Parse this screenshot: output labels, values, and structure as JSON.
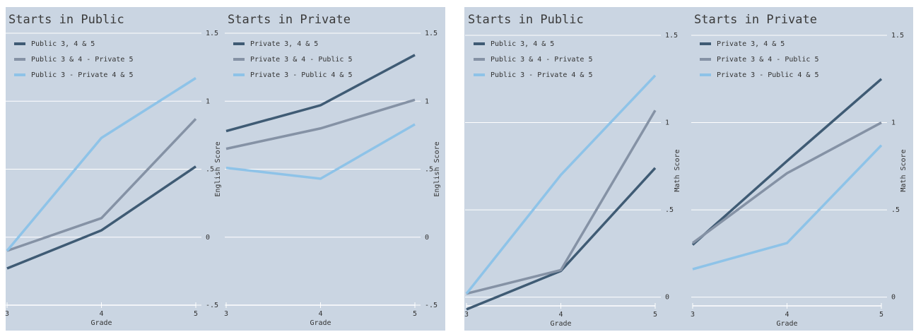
{
  "chart_data": [
    {
      "type": "line",
      "title": "Starts in Public",
      "xlabel": "Grade",
      "ylabel": "English Score",
      "x": [
        3,
        4,
        5
      ],
      "xlim": [
        3,
        5
      ],
      "xticks": [
        3,
        4,
        5
      ],
      "ylim": [
        -0.5,
        1.5
      ],
      "yticks": [
        {
          "value": -0.5,
          "label": "-.5"
        },
        0,
        {
          "value": 0.5,
          "label": ".5"
        },
        1,
        1.5
      ],
      "grid": true,
      "series": [
        {
          "name": "Public 3, 4 & 5",
          "color": "#3f5b74",
          "values": [
            -0.23,
            0.05,
            0.52
          ]
        },
        {
          "name": "Public 3 & 4 - Private 5",
          "color": "#8592a5",
          "values": [
            -0.1,
            0.14,
            0.87
          ]
        },
        {
          "name": "Public 3 - Private 4 & 5",
          "color": "#8ec3e8",
          "values": [
            -0.1,
            0.73,
            1.17
          ]
        }
      ]
    },
    {
      "type": "line",
      "title": "Starts in Private",
      "xlabel": "Grade",
      "ylabel": "English Score",
      "x": [
        3,
        4,
        5
      ],
      "xlim": [
        3,
        5
      ],
      "xticks": [
        3,
        4,
        5
      ],
      "ylim": [
        -0.5,
        1.5
      ],
      "yticks": [
        {
          "value": -0.5,
          "label": "-.5"
        },
        0,
        {
          "value": 0.5,
          "label": ".5"
        },
        1,
        1.5
      ],
      "grid": true,
      "series": [
        {
          "name": "Private 3, 4 & 5",
          "color": "#3f5b74",
          "values": [
            0.78,
            0.97,
            1.34
          ]
        },
        {
          "name": "Private 3 & 4 - Public 5",
          "color": "#8592a5",
          "values": [
            0.65,
            0.8,
            1.01
          ]
        },
        {
          "name": "Private 3 - Public 4 & 5",
          "color": "#8ec3e8",
          "values": [
            0.51,
            0.43,
            0.83
          ]
        }
      ]
    },
    {
      "type": "line",
      "title": "Starts in Public",
      "xlabel": "Grade",
      "ylabel": "Math Score",
      "x": [
        3,
        4,
        5
      ],
      "xlim": [
        3,
        5
      ],
      "xticks": [
        3,
        4,
        5
      ],
      "ylim": [
        -0.05,
        1.5
      ],
      "yticks": [
        0,
        {
          "value": 0.5,
          "label": ".5"
        },
        1,
        1.5
      ],
      "grid": true,
      "series": [
        {
          "name": "Public 3, 4 & 5",
          "color": "#3f5b74",
          "values": [
            -0.07,
            0.15,
            0.74
          ]
        },
        {
          "name": "Public 3 & 4 - Private 5",
          "color": "#8592a5",
          "values": [
            0.02,
            0.155,
            1.07
          ]
        },
        {
          "name": "Public 3 - Private 4 & 5",
          "color": "#8ec3e8",
          "values": [
            0.02,
            0.7,
            1.27
          ]
        }
      ]
    },
    {
      "type": "line",
      "title": "Starts in Private",
      "xlabel": "Grade",
      "ylabel": "Math Score",
      "x": [
        3,
        4,
        5
      ],
      "xlim": [
        3,
        5
      ],
      "xticks": [
        3,
        4,
        5
      ],
      "ylim": [
        -0.05,
        1.5
      ],
      "yticks": [
        0,
        {
          "value": 0.5,
          "label": ".5"
        },
        1,
        1.5
      ],
      "grid": true,
      "series": [
        {
          "name": "Private 3, 4 & 5",
          "color": "#3f5b74",
          "values": [
            0.3,
            0.78,
            1.25
          ]
        },
        {
          "name": "Private 3 & 4 - Public 5",
          "color": "#8592a5",
          "values": [
            0.31,
            0.71,
            1.0
          ]
        },
        {
          "name": "Private 3 - Public 4 & 5",
          "color": "#8ec3e8",
          "values": [
            0.16,
            0.31,
            0.87
          ]
        }
      ]
    }
  ]
}
